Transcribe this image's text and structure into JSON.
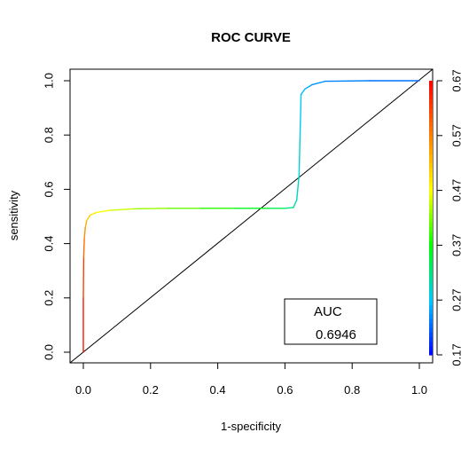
{
  "chart_data": {
    "type": "line",
    "title": "ROC CURVE",
    "xlabel": "1-specificity",
    "ylabel": "sensitivity",
    "xlim": [
      0,
      1
    ],
    "ylim": [
      0,
      1
    ],
    "x_ticks": [
      0.0,
      0.2,
      0.4,
      0.6,
      0.8,
      1.0
    ],
    "x_tick_labels": [
      "0.0",
      "0.2",
      "0.4",
      "0.6",
      "0.8",
      "1.0"
    ],
    "y_ticks": [
      0.0,
      0.2,
      0.4,
      0.6,
      0.8,
      1.0
    ],
    "y_tick_labels": [
      "0.0",
      "0.2",
      "0.4",
      "0.6",
      "0.8",
      "1.0"
    ],
    "grid": false,
    "series": [
      {
        "points": [
          {
            "x": 0.0,
            "y": 0.0,
            "t": 0.67
          },
          {
            "x": 0.0,
            "y": 0.2,
            "t": 0.64
          },
          {
            "x": 0.001,
            "y": 0.35,
            "t": 0.6
          },
          {
            "x": 0.003,
            "y": 0.42,
            "t": 0.57
          },
          {
            "x": 0.006,
            "y": 0.46,
            "t": 0.55
          },
          {
            "x": 0.01,
            "y": 0.485,
            "t": 0.52
          },
          {
            "x": 0.02,
            "y": 0.505,
            "t": 0.5
          },
          {
            "x": 0.04,
            "y": 0.515,
            "t": 0.48
          },
          {
            "x": 0.08,
            "y": 0.523,
            "t": 0.46
          },
          {
            "x": 0.15,
            "y": 0.528,
            "t": 0.44
          },
          {
            "x": 0.25,
            "y": 0.53,
            "t": 0.42
          },
          {
            "x": 0.35,
            "y": 0.53,
            "t": 0.4
          },
          {
            "x": 0.45,
            "y": 0.53,
            "t": 0.37
          },
          {
            "x": 0.55,
            "y": 0.53,
            "t": 0.35
          },
          {
            "x": 0.6,
            "y": 0.53,
            "t": 0.33
          },
          {
            "x": 0.625,
            "y": 0.533,
            "t": 0.31
          },
          {
            "x": 0.635,
            "y": 0.56,
            "t": 0.3
          },
          {
            "x": 0.642,
            "y": 0.65,
            "t": 0.29
          },
          {
            "x": 0.645,
            "y": 0.8,
            "t": 0.28
          },
          {
            "x": 0.648,
            "y": 0.95,
            "t": 0.27
          },
          {
            "x": 0.66,
            "y": 0.97,
            "t": 0.26
          },
          {
            "x": 0.68,
            "y": 0.985,
            "t": 0.25
          },
          {
            "x": 0.72,
            "y": 0.998,
            "t": 0.24
          },
          {
            "x": 0.85,
            "y": 1.0,
            "t": 0.23
          },
          {
            "x": 1.0,
            "y": 1.0,
            "t": 0.22
          }
        ]
      }
    ],
    "reference_line": {
      "from": [
        0,
        0
      ],
      "to": [
        1,
        1
      ]
    },
    "colorbar": {
      "position": "right",
      "range": [
        0.17,
        0.67
      ],
      "ticks": [
        0.17,
        0.27,
        0.37,
        0.47,
        0.57,
        0.67
      ],
      "tick_labels": [
        "0.17",
        "0.27",
        "0.37",
        "0.47",
        "0.57",
        "0.67"
      ],
      "colors": [
        "#0000ff",
        "#00c8ff",
        "#00ff00",
        "#ffff00",
        "#ff8000",
        "#ff0000"
      ]
    },
    "legend": {
      "placement": "bottom-right",
      "title": "AUC",
      "value": "0.6946"
    }
  }
}
